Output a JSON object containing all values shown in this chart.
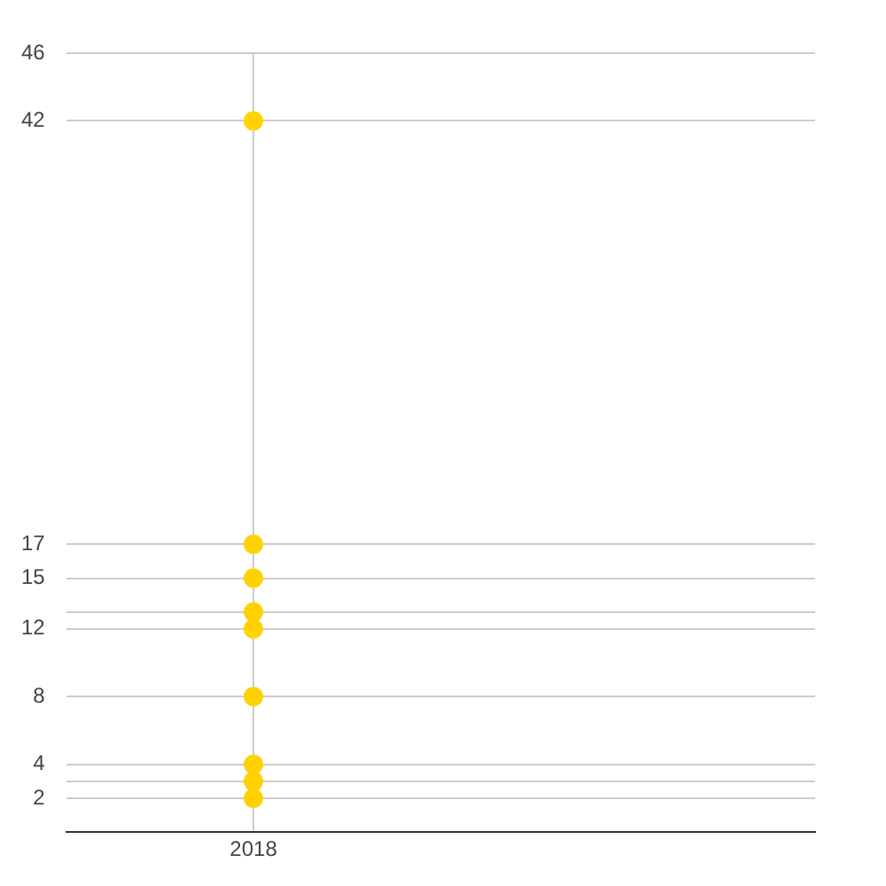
{
  "chart_data": {
    "type": "scatter",
    "categories": [
      "2018",
      null
    ],
    "series": [
      {
        "color": "#ffd200",
        "values": [
          2,
          null
        ]
      },
      {
        "color": "#ffd200",
        "values": [
          3,
          null
        ]
      },
      {
        "color": "#ffd200",
        "values": [
          4,
          null
        ]
      },
      {
        "color": "#ffd200",
        "values": [
          8,
          null
        ]
      },
      {
        "color": "#ffd200",
        "values": [
          12,
          null
        ]
      },
      {
        "color": "#ffd200",
        "values": [
          13,
          null
        ]
      },
      {
        "color": "#ffd200",
        "values": [
          15,
          null
        ]
      },
      {
        "color": "#ffd200",
        "values": [
          17,
          null
        ]
      },
      {
        "color": "#ffd200",
        "values": [
          42,
          null
        ]
      }
    ],
    "ylim": [
      0,
      46
    ],
    "yticks": [
      2,
      {
        "value": 3,
        "label": null
      },
      4,
      8,
      12,
      {
        "value": 13,
        "label": null
      },
      15,
      17,
      42,
      46
    ],
    "grid": true,
    "legend": false,
    "marker": "circle"
  }
}
